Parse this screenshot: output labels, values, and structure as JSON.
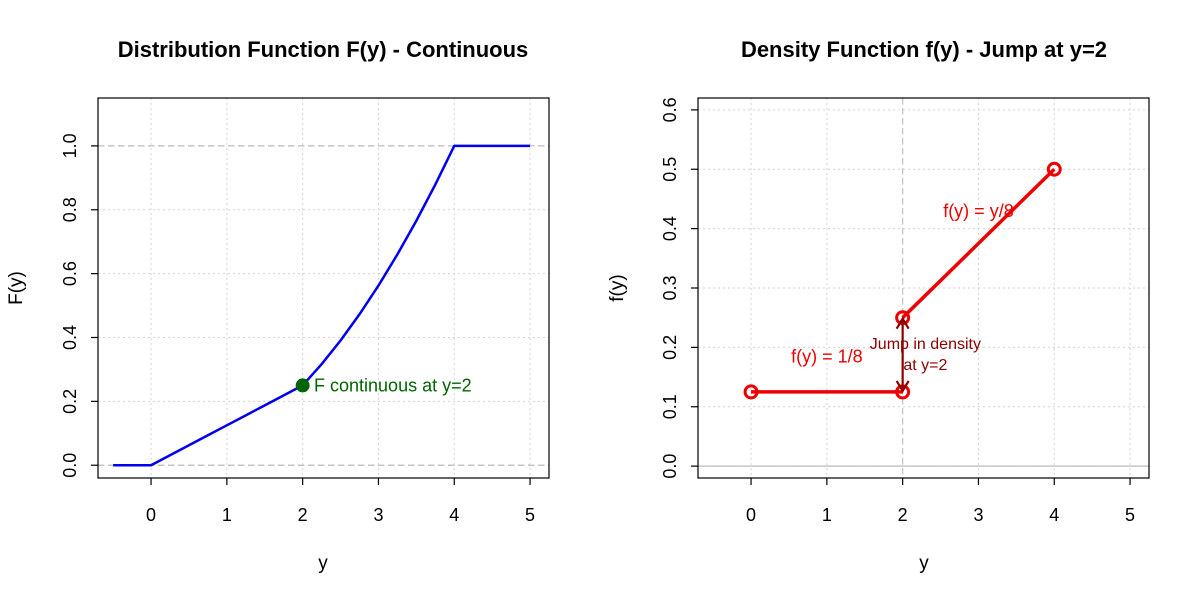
{
  "chart_data": [
    {
      "type": "line",
      "title": "Distribution Function F(y) - Continuous",
      "xlabel": "y",
      "ylabel": "F(y)",
      "xlim": [
        -0.7,
        5.25
      ],
      "ylim": [
        -0.04,
        1.15
      ],
      "x_ticks": [
        0,
        1,
        2,
        3,
        4,
        5
      ],
      "y_ticks": [
        0.0,
        0.2,
        0.4,
        0.6,
        0.8,
        1.0
      ],
      "x_tick_labels": [
        "0",
        "1",
        "2",
        "3",
        "4",
        "5"
      ],
      "y_tick_labels": [
        "0.0",
        "0.2",
        "0.4",
        "0.6",
        "0.8",
        "1.0"
      ],
      "grid": true,
      "reference_lines_y": [
        0,
        1
      ],
      "series": [
        {
          "color": "#0000ee",
          "x": [
            -0.5,
            0,
            0.25,
            0.5,
            0.75,
            1,
            1.25,
            1.5,
            1.75,
            2,
            2.25,
            2.5,
            2.75,
            3,
            3.25,
            3.5,
            3.75,
            4,
            5
          ],
          "y": [
            0,
            0,
            0.03125,
            0.0625,
            0.09375,
            0.125,
            0.15625,
            0.1875,
            0.21875,
            0.25,
            0.3164,
            0.3906,
            0.4727,
            0.5625,
            0.6602,
            0.7656,
            0.8789,
            1.0,
            1.0
          ]
        }
      ],
      "points": [
        {
          "x": 2,
          "y": 0.25,
          "color": "#006400"
        }
      ],
      "annotations": [
        {
          "text": "F continuous at y=2",
          "x": 2.15,
          "y": 0.25,
          "color": "#006400"
        }
      ]
    },
    {
      "type": "line",
      "title": "Density Function f(y) - Jump at y=2",
      "xlabel": "y",
      "ylabel": "f(y)",
      "xlim": [
        -0.7,
        5.25
      ],
      "ylim": [
        -0.02,
        0.62
      ],
      "x_ticks": [
        0,
        1,
        2,
        3,
        4,
        5
      ],
      "y_ticks": [
        0.0,
        0.1,
        0.2,
        0.3,
        0.4,
        0.5,
        0.6
      ],
      "x_tick_labels": [
        "0",
        "1",
        "2",
        "3",
        "4",
        "5"
      ],
      "y_tick_labels": [
        "0.0",
        "0.1",
        "0.2",
        "0.3",
        "0.4",
        "0.5",
        "0.6"
      ],
      "grid": true,
      "reference_lines_y": [
        0
      ],
      "series": [
        {
          "color": "#ee0000",
          "x": [
            0,
            2
          ],
          "y": [
            0.125,
            0.125
          ]
        },
        {
          "color": "#ee0000",
          "x": [
            2,
            4
          ],
          "y": [
            0.25,
            0.5
          ]
        }
      ],
      "open_points": [
        {
          "x": 0,
          "y": 0.125
        },
        {
          "x": 2,
          "y": 0.125
        },
        {
          "x": 2,
          "y": 0.25
        },
        {
          "x": 4,
          "y": 0.5
        }
      ],
      "arrow": {
        "x": 2,
        "y_from": 0.125,
        "y_to": 0.25,
        "color": "#8b0000"
      },
      "annotations": [
        {
          "text": "f(y) = 1/8",
          "x": 1.0,
          "y": 0.185,
          "color": "#ee0000"
        },
        {
          "text": "f(y) = y/8",
          "x": 3.0,
          "y": 0.43,
          "color": "#ee0000"
        },
        {
          "text": "Jump in density",
          "x": 2.3,
          "y": 0.207,
          "color": "#8b0000",
          "size": "small"
        },
        {
          "text": "at y=2",
          "x": 2.3,
          "y": 0.172,
          "color": "#8b0000",
          "size": "small"
        }
      ]
    }
  ]
}
